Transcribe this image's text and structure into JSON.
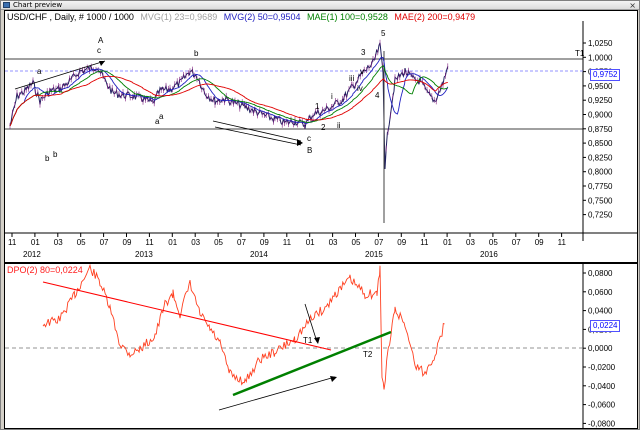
{
  "window": {
    "title": "Chart preview",
    "close_glyph": "×"
  },
  "price_chart": {
    "legend": [
      {
        "text": "USD/CHF , Daily, # 1000 / 1000",
        "color": "#000000"
      },
      {
        "text": "MVG(1) 23=0,9689",
        "color": "#ffffff"
      },
      {
        "text": "MVG(2) 50=0,9504",
        "color": "#2020c0"
      },
      {
        "text": "MAE(1) 100=0,9528",
        "color": "#008000"
      },
      {
        "text": "MAE(2) 200=0,9479",
        "color": "#e00000"
      }
    ],
    "y_ticks": [
      "1,0250",
      "1,0000",
      "0,9750",
      "0,9500",
      "0,9250",
      "0,9000",
      "0,8750",
      "0,8500",
      "0,8250",
      "0,8000",
      "0,7750",
      "0,7500",
      "0,7250"
    ],
    "x_month_ticks": [
      "11",
      "01",
      "03",
      "05",
      "07",
      "09",
      "11",
      "01",
      "03",
      "05",
      "07",
      "09",
      "11",
      "01",
      "03",
      "05",
      "07",
      "09",
      "11",
      "01",
      "03",
      "05",
      "07",
      "09",
      "11"
    ],
    "x_year_labels": [
      "2012",
      "2013",
      "2014",
      "2015",
      "2016"
    ],
    "current_price": "0,9752",
    "line_label_t1": "T1",
    "wave_labels": [
      "A",
      "c",
      "a",
      "b",
      "b",
      "a",
      "c",
      "B",
      "1",
      "2",
      "3",
      "4",
      "5",
      "i",
      "ii",
      "iii",
      "iv",
      "v"
    ]
  },
  "dpo_chart": {
    "legend": "DPO(2) 80=0,0224",
    "legend_color": "#ff2020",
    "y_ticks": [
      "0,0800",
      "0,0600",
      "0,0400",
      "0,0200",
      "0,0000",
      "-0,0200",
      "-0,0400",
      "-0,0600",
      "-0,0800"
    ],
    "current_value": "0,0224",
    "labels": [
      "T1",
      "T2"
    ]
  },
  "colors": {
    "price_bars": "#202060",
    "mvg2": "#2020c0",
    "mae1": "#008000",
    "mae2": "#e00000",
    "dpo": "#ff4020",
    "trend_red": "#ff0000",
    "trend_green": "#008000",
    "ref_line": "#7070ff"
  }
}
